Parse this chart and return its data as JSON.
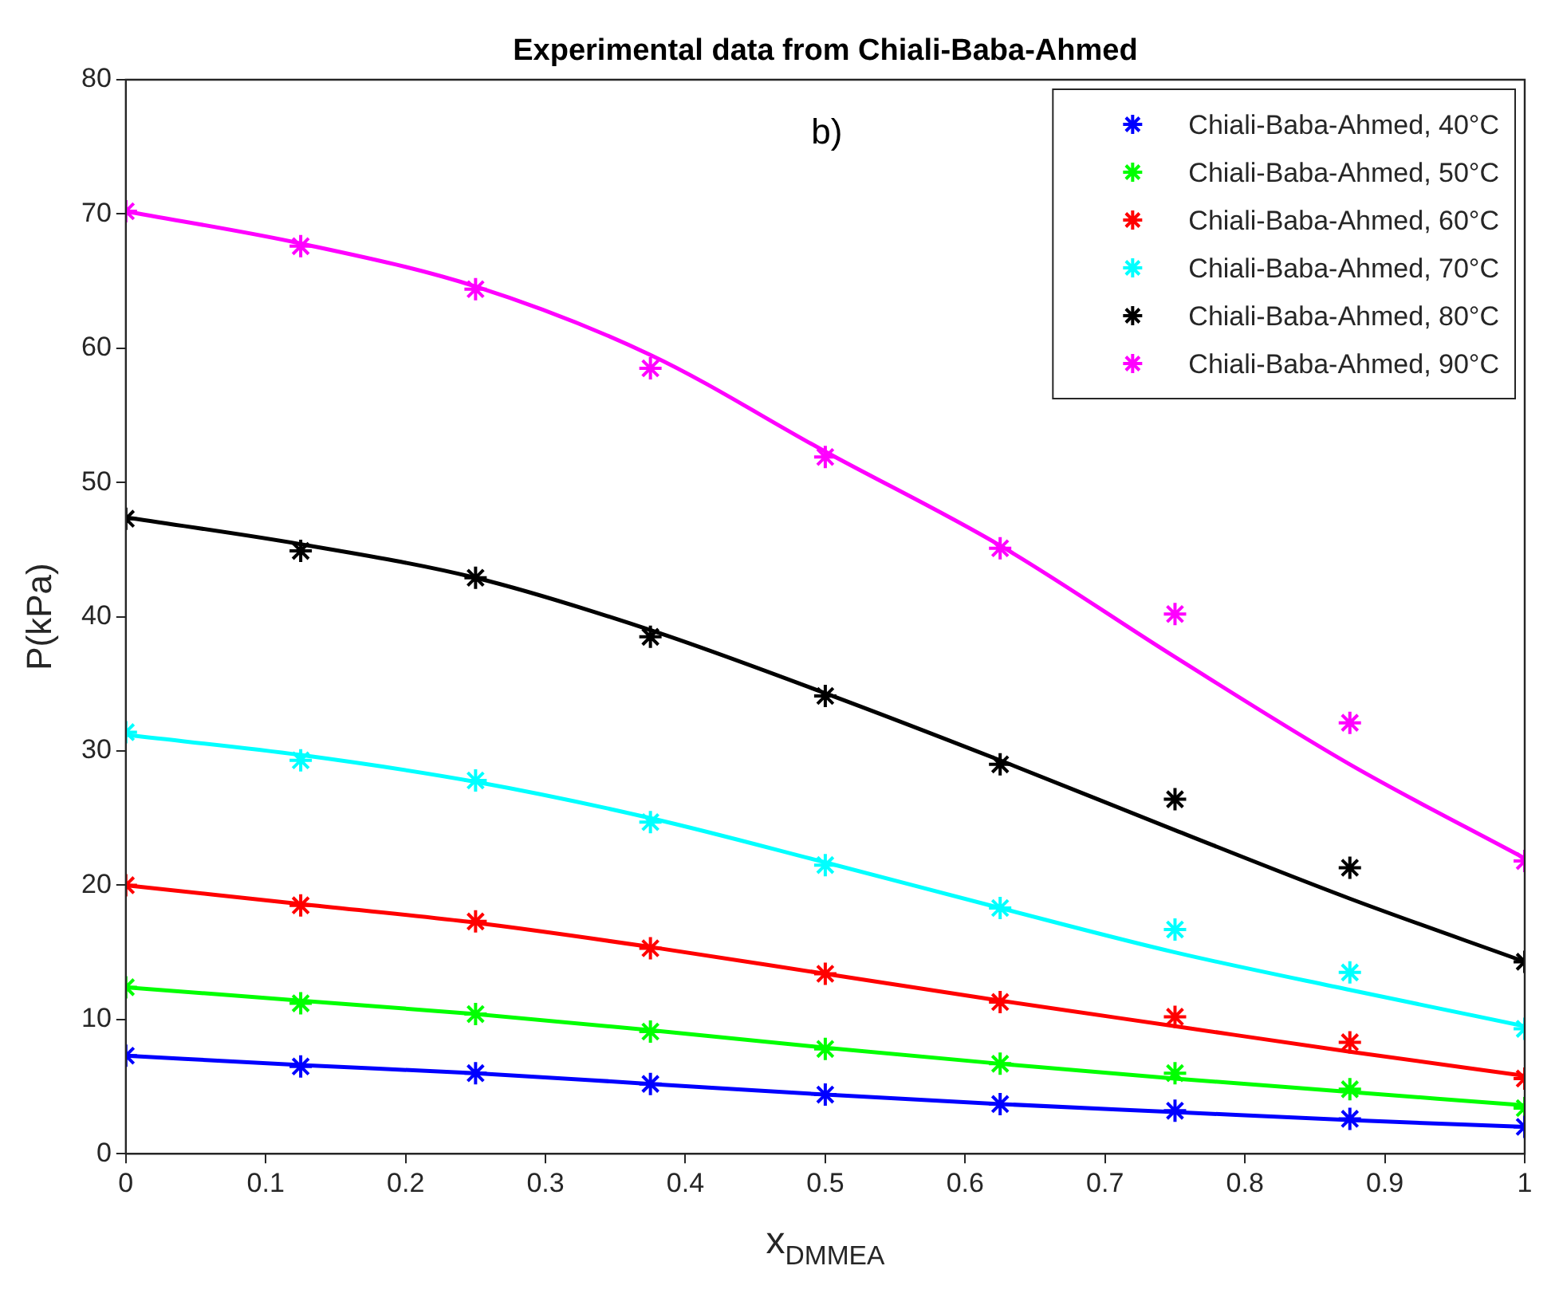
{
  "chart_data": {
    "type": "scatter",
    "title": "Experimental data from Chiali-Baba-Ahmed",
    "xlabel": "x$_{DMMEA}$",
    "ylabel": "P(kPa)",
    "annotations": [
      "b)"
    ],
    "x": [
      0,
      0.125,
      0.25,
      0.375,
      0.5,
      0.625,
      0.75,
      0.875,
      1
    ],
    "xlim": [
      0,
      1
    ],
    "xticks": [
      0,
      0.1,
      0.2,
      0.3,
      0.4,
      0.5,
      0.6,
      0.7,
      0.8,
      0.9,
      1
    ],
    "ylim": [
      0,
      80
    ],
    "yticks": [
      0,
      10,
      20,
      30,
      40,
      50,
      60,
      70,
      80
    ],
    "grid": false,
    "legend": "top right",
    "marker": "cross",
    "series": [
      {
        "name": "Chiali-Baba-Ahmed, 40°C",
        "color": "#0000ff",
        "values": [
          7.3,
          6.5,
          6.0,
          5.2,
          4.4,
          3.7,
          3.2,
          2.6,
          2.0
        ]
      },
      {
        "name": "Chiali-Baba-Ahmed, 50°C",
        "color": "#00ff00",
        "values": [
          12.4,
          11.2,
          10.4,
          9.1,
          7.8,
          6.7,
          6.0,
          4.8,
          3.4
        ]
      },
      {
        "name": "Chiali-Baba-Ahmed, 60°C",
        "color": "#ff0000",
        "values": [
          20.0,
          18.5,
          17.3,
          15.3,
          13.4,
          11.3,
          10.2,
          8.3,
          5.6
        ]
      },
      {
        "name": "Chiali-Baba-Ahmed, 70°C",
        "color": "#00ffff",
        "values": [
          31.4,
          29.3,
          27.8,
          24.7,
          21.5,
          18.3,
          16.7,
          13.5,
          9.3
        ]
      },
      {
        "name": "Chiali-Baba-Ahmed, 80°C",
        "color": "#000000",
        "values": [
          47.3,
          44.9,
          42.9,
          38.5,
          34.1,
          29.0,
          26.4,
          21.3,
          14.3
        ]
      },
      {
        "name": "Chiali-Baba-Ahmed, 90°C",
        "color": "#ff00ff",
        "values": [
          70.2,
          67.6,
          64.4,
          58.5,
          51.9,
          45.1,
          40.2,
          32.1,
          21.8
        ]
      },
      {
        "type": "line",
        "marker": "none",
        "color": "#0000ff",
        "x": [
          0,
          0.125,
          0.25,
          0.375,
          0.5,
          0.625,
          0.75,
          0.875,
          1
        ],
        "values": [
          7.3,
          6.6,
          6.0,
          5.2,
          4.4,
          3.7,
          3.1,
          2.5,
          2.0
        ]
      },
      {
        "type": "line",
        "marker": "none",
        "color": "#00ff00",
        "x": [
          0,
          0.125,
          0.25,
          0.375,
          0.5,
          0.625,
          0.75,
          0.875,
          1
        ],
        "values": [
          12.4,
          11.4,
          10.4,
          9.2,
          7.9,
          6.7,
          5.6,
          4.6,
          3.6
        ]
      },
      {
        "type": "line",
        "marker": "none",
        "color": "#ff0000",
        "x": [
          0,
          0.125,
          0.25,
          0.375,
          0.5,
          0.625,
          0.75,
          0.875,
          1
        ],
        "values": [
          20.0,
          18.6,
          17.2,
          15.4,
          13.4,
          11.4,
          9.5,
          7.6,
          5.8
        ]
      },
      {
        "type": "line",
        "marker": "none",
        "color": "#00ffff",
        "x": [
          0,
          0.125,
          0.25,
          0.375,
          0.5,
          0.625,
          0.75,
          0.875,
          1
        ],
        "values": [
          31.2,
          29.7,
          27.7,
          25.0,
          21.7,
          18.3,
          15.0,
          12.2,
          9.5
        ]
      },
      {
        "type": "line",
        "marker": "none",
        "color": "#000000",
        "x": [
          0,
          0.125,
          0.25,
          0.375,
          0.5,
          0.625,
          0.75,
          0.875,
          1
        ],
        "values": [
          47.4,
          45.4,
          42.9,
          39.0,
          34.3,
          29.3,
          24.1,
          19.0,
          14.3
        ]
      },
      {
        "type": "line",
        "marker": "none",
        "color": "#ff00ff",
        "x": [
          0,
          0.125,
          0.25,
          0.375,
          0.5,
          0.625,
          0.75,
          0.875,
          1
        ],
        "values": [
          70.2,
          67.8,
          64.6,
          59.5,
          52.3,
          45.3,
          37.0,
          29.0,
          22.0
        ]
      }
    ]
  }
}
